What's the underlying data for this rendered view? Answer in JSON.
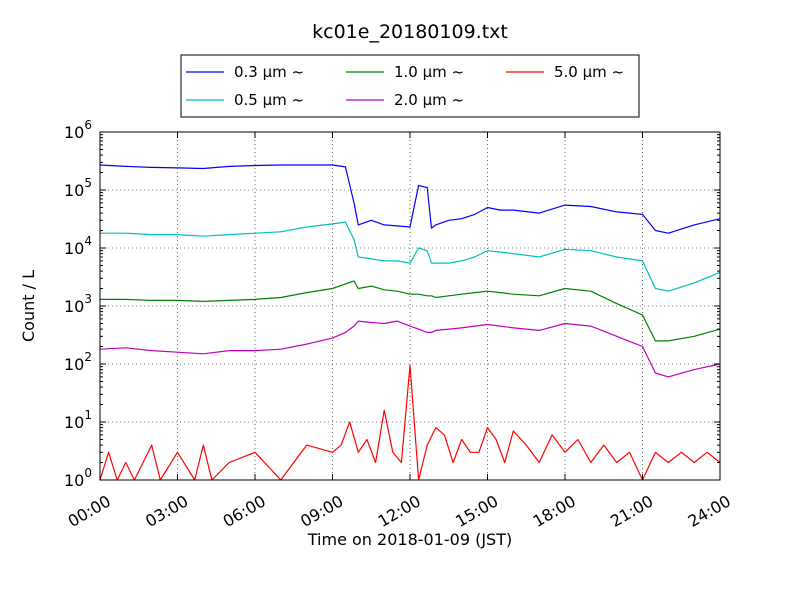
{
  "chart_data": {
    "type": "line",
    "title": "kc01e_20180109.txt",
    "xlabel": "Time on 2018-01-09 (JST)",
    "ylabel": "Count / L",
    "yscale": "log",
    "ylim": [
      1,
      1000000
    ],
    "xlim": [
      "00:00",
      "24:00"
    ],
    "grid": true,
    "legend_position": "top",
    "x_ticks": [
      "00:00",
      "03:00",
      "06:00",
      "09:00",
      "12:00",
      "15:00",
      "18:00",
      "21:00",
      "24:00"
    ],
    "y_ticks": [
      {
        "base": "10",
        "exp": "0"
      },
      {
        "base": "10",
        "exp": "1"
      },
      {
        "base": "10",
        "exp": "2"
      },
      {
        "base": "10",
        "exp": "3"
      },
      {
        "base": "10",
        "exp": "4"
      },
      {
        "base": "10",
        "exp": "5"
      },
      {
        "base": "10",
        "exp": "6"
      }
    ],
    "series": [
      {
        "name": "0.3 μm ~",
        "color": "#0000ff",
        "x": [
          "00:00",
          "01:00",
          "02:00",
          "03:00",
          "04:00",
          "05:00",
          "06:00",
          "07:00",
          "08:00",
          "09:00",
          "09:30",
          "09:50",
          "10:00",
          "10:30",
          "11:00",
          "11:30",
          "12:00",
          "12:20",
          "12:40",
          "12:50",
          "13:00",
          "13:30",
          "14:00",
          "14:30",
          "15:00",
          "15:30",
          "16:00",
          "17:00",
          "18:00",
          "19:00",
          "20:00",
          "21:00",
          "21:30",
          "22:00",
          "23:00",
          "24:00"
        ],
        "values": [
          270000,
          255000,
          245000,
          240000,
          235000,
          255000,
          265000,
          270000,
          270000,
          270000,
          250000,
          60000,
          25000,
          30000,
          25000,
          24000,
          23000,
          120000,
          110000,
          22000,
          25000,
          30000,
          32000,
          38000,
          50000,
          45000,
          45000,
          40000,
          55000,
          52000,
          42000,
          38000,
          20000,
          18000,
          25000,
          32000
        ]
      },
      {
        "name": "0.5 μm ~",
        "color": "#00bfbf",
        "x": [
          "00:00",
          "01:00",
          "02:00",
          "03:00",
          "04:00",
          "05:00",
          "06:00",
          "07:00",
          "08:00",
          "09:00",
          "09:30",
          "09:50",
          "10:00",
          "10:30",
          "11:00",
          "11:30",
          "12:00",
          "12:20",
          "12:40",
          "12:50",
          "13:00",
          "13:30",
          "14:00",
          "14:30",
          "15:00",
          "15:30",
          "16:00",
          "17:00",
          "18:00",
          "19:00",
          "20:00",
          "21:00",
          "21:30",
          "22:00",
          "23:00",
          "24:00"
        ],
        "values": [
          18000,
          18000,
          17000,
          17000,
          16000,
          17000,
          18000,
          19000,
          23000,
          26000,
          28000,
          14000,
          7000,
          6500,
          6000,
          6000,
          5500,
          10000,
          9000,
          5500,
          5500,
          5500,
          6000,
          7000,
          9000,
          8500,
          8000,
          7000,
          9500,
          9000,
          7000,
          6000,
          2000,
          1800,
          2500,
          3800
        ]
      },
      {
        "name": "1.0 μm ~",
        "color": "#008000",
        "x": [
          "00:00",
          "01:00",
          "02:00",
          "03:00",
          "04:00",
          "05:00",
          "06:00",
          "07:00",
          "08:00",
          "09:00",
          "09:30",
          "09:50",
          "10:00",
          "10:30",
          "11:00",
          "11:30",
          "12:00",
          "12:20",
          "12:40",
          "12:50",
          "13:00",
          "13:30",
          "14:00",
          "14:30",
          "15:00",
          "15:30",
          "16:00",
          "17:00",
          "18:00",
          "19:00",
          "20:00",
          "21:00",
          "21:30",
          "22:00",
          "23:00",
          "24:00"
        ],
        "values": [
          1300,
          1300,
          1250,
          1250,
          1200,
          1250,
          1300,
          1400,
          1700,
          2000,
          2400,
          2700,
          2000,
          2200,
          1900,
          1800,
          1600,
          1600,
          1500,
          1500,
          1400,
          1500,
          1600,
          1700,
          1800,
          1700,
          1600,
          1500,
          2000,
          1800,
          1100,
          700,
          250,
          250,
          300,
          400
        ]
      },
      {
        "name": "2.0 μm ~",
        "color": "#bf00bf",
        "x": [
          "00:00",
          "01:00",
          "02:00",
          "03:00",
          "04:00",
          "05:00",
          "06:00",
          "07:00",
          "08:00",
          "09:00",
          "09:30",
          "09:50",
          "10:00",
          "10:30",
          "11:00",
          "11:30",
          "12:00",
          "12:20",
          "12:40",
          "12:50",
          "13:00",
          "13:30",
          "14:00",
          "14:30",
          "15:00",
          "15:30",
          "16:00",
          "17:00",
          "18:00",
          "19:00",
          "20:00",
          "21:00",
          "21:30",
          "22:00",
          "23:00",
          "24:00"
        ],
        "values": [
          180,
          190,
          170,
          160,
          150,
          170,
          170,
          180,
          220,
          280,
          350,
          450,
          550,
          520,
          500,
          550,
          450,
          400,
          350,
          350,
          380,
          400,
          420,
          450,
          480,
          450,
          420,
          380,
          500,
          450,
          300,
          200,
          70,
          60,
          80,
          100
        ]
      },
      {
        "name": "5.0 μm ~",
        "color": "#ff0000",
        "x": [
          "00:00",
          "00:20",
          "00:40",
          "01:00",
          "01:20",
          "02:00",
          "02:20",
          "03:00",
          "03:40",
          "04:00",
          "04:20",
          "05:00",
          "06:00",
          "07:00",
          "08:00",
          "09:00",
          "09:20",
          "09:40",
          "10:00",
          "10:20",
          "10:40",
          "11:00",
          "11:20",
          "11:40",
          "12:00",
          "12:20",
          "12:40",
          "13:00",
          "13:20",
          "13:40",
          "14:00",
          "14:20",
          "14:40",
          "15:00",
          "15:20",
          "15:40",
          "16:00",
          "16:30",
          "17:00",
          "17:30",
          "18:00",
          "18:30",
          "19:00",
          "19:30",
          "20:00",
          "20:30",
          "21:00",
          "21:30",
          "22:00",
          "22:30",
          "23:00",
          "23:30",
          "24:00"
        ],
        "values": [
          1,
          3,
          1,
          2,
          1,
          4,
          1,
          3,
          1,
          4,
          1,
          2,
          3,
          1,
          4,
          3,
          4,
          10,
          3,
          5,
          2,
          16,
          3,
          2,
          95,
          1,
          4,
          8,
          6,
          2,
          5,
          3,
          3,
          8,
          5,
          2,
          7,
          4,
          2,
          6,
          3,
          5,
          2,
          4,
          2,
          3,
          1,
          3,
          2,
          3,
          2,
          3,
          2
        ]
      }
    ]
  }
}
